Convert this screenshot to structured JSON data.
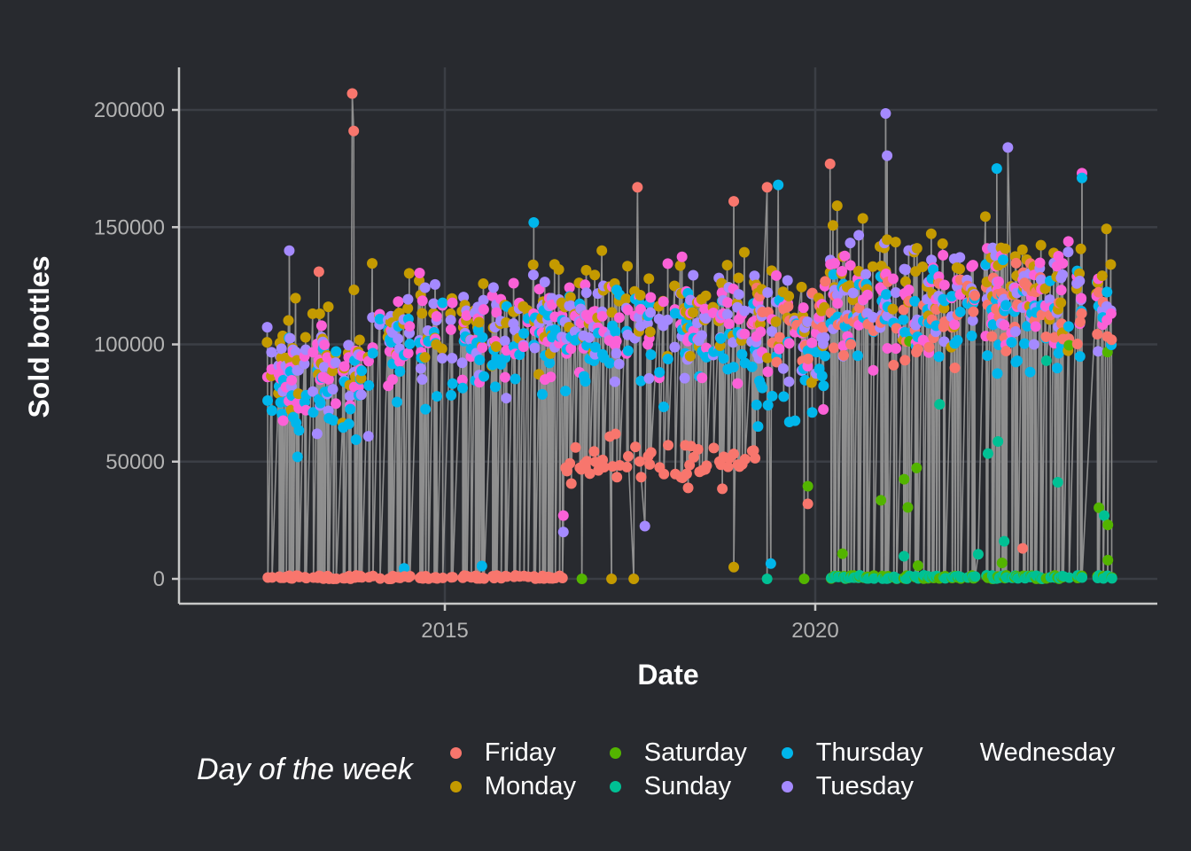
{
  "chart_data": {
    "type": "scatter",
    "subtype": "lollipop",
    "title": "",
    "xlabel": "Date",
    "ylabel": "Sold bottles",
    "xlim": [
      2011.8,
      2024.6
    ],
    "ylim": [
      -8000,
      218000
    ],
    "x_ticks": [
      2015,
      2020
    ],
    "x_tick_labels": [
      "2015",
      "2020"
    ],
    "y_ticks": [
      0,
      50000,
      100000,
      150000,
      200000
    ],
    "y_tick_labels": [
      "0",
      "50000",
      "100000",
      "150000",
      "200000"
    ],
    "grid": true,
    "legend_position": "bottom",
    "legend_title": "Day of the week",
    "series": [
      {
        "name": "Friday",
        "color": "#F8766D"
      },
      {
        "name": "Monday",
        "color": "#C49A00"
      },
      {
        "name": "Saturday",
        "color": "#53B400"
      },
      {
        "name": "Sunday",
        "color": "#00C094"
      },
      {
        "name": "Thursday",
        "color": "#00B6EB"
      },
      {
        "name": "Tuesday",
        "color": "#A58AFF"
      },
      {
        "name": "Wednesday",
        "color": "#FB61D7"
      }
    ],
    "periods": [
      {
        "from": 2012.6,
        "to": 2014.0,
        "weekday_mean": 88000,
        "weekday_sd": 15000,
        "friday_mean": 0,
        "weekend_mean": 0
      },
      {
        "from": 2014.0,
        "to": 2016.6,
        "weekday_mean": 105000,
        "weekday_sd": 16000,
        "friday_mean": 0,
        "weekend_mean": 0
      },
      {
        "from": 2016.6,
        "to": 2019.2,
        "weekday_mean": 110000,
        "weekday_sd": 16000,
        "friday_mean": 50000,
        "weekend_mean": 0
      },
      {
        "from": 2019.2,
        "to": 2020.2,
        "weekday_mean": 105000,
        "weekday_sd": 18000,
        "friday_mean": 110000,
        "weekend_mean": 0
      },
      {
        "from": 2020.2,
        "to": 2024.0,
        "weekday_mean": 120000,
        "weekday_sd": 17000,
        "friday_mean": 115000,
        "weekend_mean": 0
      }
    ],
    "notable_points": [
      {
        "x": 2013.75,
        "y": 207000,
        "day": "Friday"
      },
      {
        "x": 2013.77,
        "y": 191000,
        "day": "Friday"
      },
      {
        "x": 2012.9,
        "y": 140000,
        "day": "Tuesday"
      },
      {
        "x": 2013.3,
        "y": 131000,
        "day": "Friday"
      },
      {
        "x": 2017.6,
        "y": 167000,
        "day": "Friday"
      },
      {
        "x": 2018.9,
        "y": 161000,
        "day": "Friday"
      },
      {
        "x": 2019.35,
        "y": 167000,
        "day": "Friday"
      },
      {
        "x": 2019.5,
        "y": 168000,
        "day": "Thursday"
      },
      {
        "x": 2020.2,
        "y": 177000,
        "day": "Friday"
      },
      {
        "x": 2020.95,
        "y": 198500,
        "day": "Tuesday"
      },
      {
        "x": 2020.97,
        "y": 180500,
        "day": "Tuesday"
      },
      {
        "x": 2022.6,
        "y": 184000,
        "day": "Tuesday"
      },
      {
        "x": 2022.45,
        "y": 175000,
        "day": "Thursday"
      },
      {
        "x": 2023.6,
        "y": 173000,
        "day": "Wednesday"
      },
      {
        "x": 2023.6,
        "y": 171000,
        "day": "Thursday"
      },
      {
        "x": 2016.2,
        "y": 152000,
        "day": "Thursday"
      },
      {
        "x": 2017.25,
        "y": 0,
        "day": "Monday"
      },
      {
        "x": 2017.55,
        "y": 0,
        "day": "Monday"
      },
      {
        "x": 2016.85,
        "y": 0,
        "day": "Saturday"
      },
      {
        "x": 2018.9,
        "y": 5000,
        "day": "Monday"
      },
      {
        "x": 2019.4,
        "y": 6500,
        "day": "Thursday"
      },
      {
        "x": 2019.85,
        "y": 0,
        "day": "Saturday"
      },
      {
        "x": 2019.35,
        "y": 0,
        "day": "Sunday"
      },
      {
        "x": 2017.7,
        "y": 22500,
        "day": "Tuesday"
      },
      {
        "x": 2016.6,
        "y": 20000,
        "day": "Tuesday"
      },
      {
        "x": 2016.6,
        "y": 27000,
        "day": "Wednesday"
      },
      {
        "x": 2019.9,
        "y": 32000,
        "day": "Friday"
      },
      {
        "x": 2019.9,
        "y": 39500,
        "day": "Saturday"
      },
      {
        "x": 2021.2,
        "y": 42500,
        "day": "Saturday"
      },
      {
        "x": 2021.25,
        "y": 30500,
        "day": "Saturday"
      },
      {
        "x": 2023.95,
        "y": 8000,
        "day": "Saturday"
      },
      {
        "x": 2023.95,
        "y": 23000,
        "day": "Saturday"
      },
      {
        "x": 2023.9,
        "y": 27000,
        "day": "Sunday"
      },
      {
        "x": 2022.8,
        "y": 13000,
        "day": "Friday"
      },
      {
        "x": 2022.55,
        "y": 16000,
        "day": "Sunday"
      },
      {
        "x": 2022.2,
        "y": 10500,
        "day": "Sunday"
      },
      {
        "x": 2014.45,
        "y": 4500,
        "day": "Thursday"
      },
      {
        "x": 2015.5,
        "y": 5500,
        "day": "Thursday"
      }
    ]
  }
}
